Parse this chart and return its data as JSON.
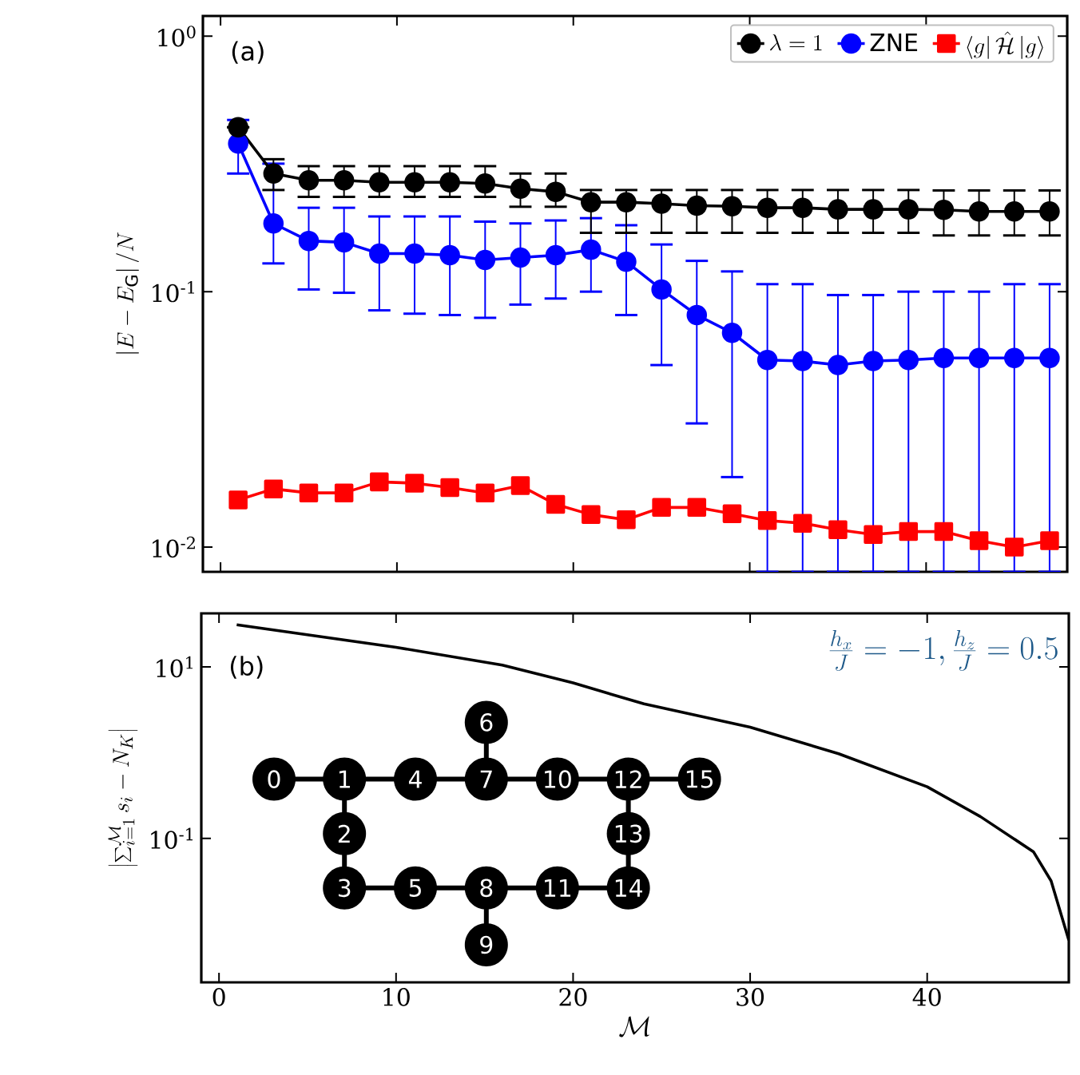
{
  "chart_data": [
    {
      "type": "line",
      "annotations": [
        "(a)"
      ],
      "ylabel": "\\left|E-E_{\\mathrm{G}}\\right|/N",
      "log": "y",
      "legend": "top right",
      "tick_labels": "y",
      "xlim": [
        -1,
        48
      ],
      "xticks": [
        0,
        10,
        20,
        30,
        40
      ],
      "ylim": [
        0.008,
        1.2
      ],
      "yticks": [
        {
          "value": 1,
          "label": "10$^{0}$"
        },
        {
          "value": 0.1,
          "label": "10$^{-1}$"
        },
        {
          "value": 0.01,
          "label": "10$^{-2}$"
        }
      ],
      "x": [
        1,
        3,
        5,
        7,
        9,
        11,
        13,
        15,
        17,
        19,
        21,
        23,
        25,
        27,
        29,
        31,
        33,
        35,
        37,
        39,
        41,
        43,
        45,
        47
      ],
      "series": [
        {
          "name": "\\lambda=1",
          "color": "#000000",
          "marker": "circle",
          "values": [
            0.44,
            0.29,
            0.273,
            0.273,
            0.268,
            0.268,
            0.268,
            0.265,
            0.253,
            0.246,
            0.224,
            0.224,
            0.221,
            0.217,
            0.216,
            0.213,
            0.213,
            0.21,
            0.21,
            0.21,
            0.209,
            0.206,
            0.206,
            0.206
          ],
          "errors": [
            null,
            [
              0.25,
              0.33
            ],
            [
              0.235,
              0.31
            ],
            [
              0.235,
              0.31
            ],
            [
              0.235,
              0.31
            ],
            [
              0.235,
              0.31
            ],
            [
              0.235,
              0.31
            ],
            [
              0.235,
              0.31
            ],
            [
              0.215,
              0.29
            ],
            [
              0.215,
              0.29
            ],
            [
              0.17,
              0.25
            ],
            [
              0.17,
              0.25
            ],
            [
              0.17,
              0.25
            ],
            [
              0.17,
              0.25
            ],
            [
              0.17,
              0.25
            ],
            [
              0.17,
              0.25
            ],
            [
              0.17,
              0.25
            ],
            [
              0.17,
              0.25
            ],
            [
              0.17,
              0.25
            ],
            [
              0.17,
              0.25
            ],
            [
              0.166,
              0.249
            ],
            [
              0.166,
              0.249
            ],
            [
              0.166,
              0.249
            ],
            [
              0.166,
              0.249
            ]
          ]
        },
        {
          "name": "\\mathrm{ZNE}",
          "color": "#0000ff",
          "marker": "circle",
          "values": [
            0.38,
            0.185,
            0.158,
            0.156,
            0.141,
            0.141,
            0.139,
            0.133,
            0.136,
            0.139,
            0.146,
            0.131,
            0.102,
            0.081,
            0.069,
            0.054,
            0.0535,
            0.0516,
            0.0535,
            0.054,
            0.055,
            0.055,
            0.055,
            0.055
          ],
          "errors": [
            [
              0.29,
              0.47
            ],
            [
              0.129,
              0.317
            ],
            [
              0.102,
              0.213
            ],
            [
              0.099,
              0.213
            ],
            [
              0.0845,
              0.197
            ],
            [
              0.082,
              0.197
            ],
            [
              0.081,
              0.197
            ],
            [
              0.079,
              0.188
            ],
            [
              0.089,
              0.185
            ],
            [
              0.094,
              0.19
            ],
            [
              0.1,
              0.194
            ],
            [
              0.081,
              0.182
            ],
            [
              0.0516,
              0.153
            ],
            [
              0.0305,
              0.132
            ],
            [
              0.0188,
              0.12
            ],
            [
              0.008,
              0.107
            ],
            [
              0.008,
              0.107
            ],
            [
              0.008,
              0.097
            ],
            [
              0.008,
              0.097
            ],
            [
              0.008,
              0.1
            ],
            [
              0.008,
              0.1
            ],
            [
              0.008,
              0.1
            ],
            [
              0.008,
              0.107
            ],
            [
              0.008,
              0.107
            ]
          ]
        },
        {
          "name": "\\langle g|\\,\\hat{\\mathcal{H}}\\,|g\\rangle",
          "color": "#ff0000",
          "marker": "square",
          "values": [
            0.0153,
            0.0169,
            0.0163,
            0.0163,
            0.018,
            0.0178,
            0.0171,
            0.0163,
            0.0174,
            0.0147,
            0.0134,
            0.0128,
            0.0143,
            0.0143,
            0.0135,
            0.0127,
            0.0124,
            0.0117,
            0.0112,
            0.0115,
            0.0115,
            0.0106,
            0.01,
            0.0106
          ]
        }
      ]
    },
    {
      "type": "line",
      "annotations": [
        "(b)",
        "\\frac{h_x}{J}=-1,\\frac{h_z}{J}=0.5",
        "0",
        "1",
        "2",
        "3",
        "4",
        "5",
        "6",
        "7",
        "8",
        "9",
        "10",
        "11",
        "12",
        "13",
        "14",
        "15"
      ],
      "xlabel": "\\mathcal{M}",
      "ylabel": "\\left|\\sum_{i=1}^{\\mathcal{M}} s_i-N_K\\right|",
      "log": "y",
      "xlim": [
        -1,
        48
      ],
      "xticks": [
        0,
        10,
        20,
        30,
        40
      ],
      "ylim": [
        0.0021,
        42
      ],
      "yticks": [
        {
          "value": 10,
          "label": "10$^{1}$"
        },
        {
          "value": 0.1,
          "label": "10$^{-1}$"
        }
      ],
      "series": [
        {
          "color": "#000000",
          "x": [
            1,
            10,
            16,
            20,
            24,
            30,
            35,
            40,
            43,
            46,
            47,
            48
          ],
          "values": [
            31,
            16.9,
            10.5,
            6.5,
            3.7,
            1.98,
            0.97,
            0.4,
            0.18,
            0.07,
            0.032,
            0.0065
          ]
        }
      ]
    }
  ]
}
